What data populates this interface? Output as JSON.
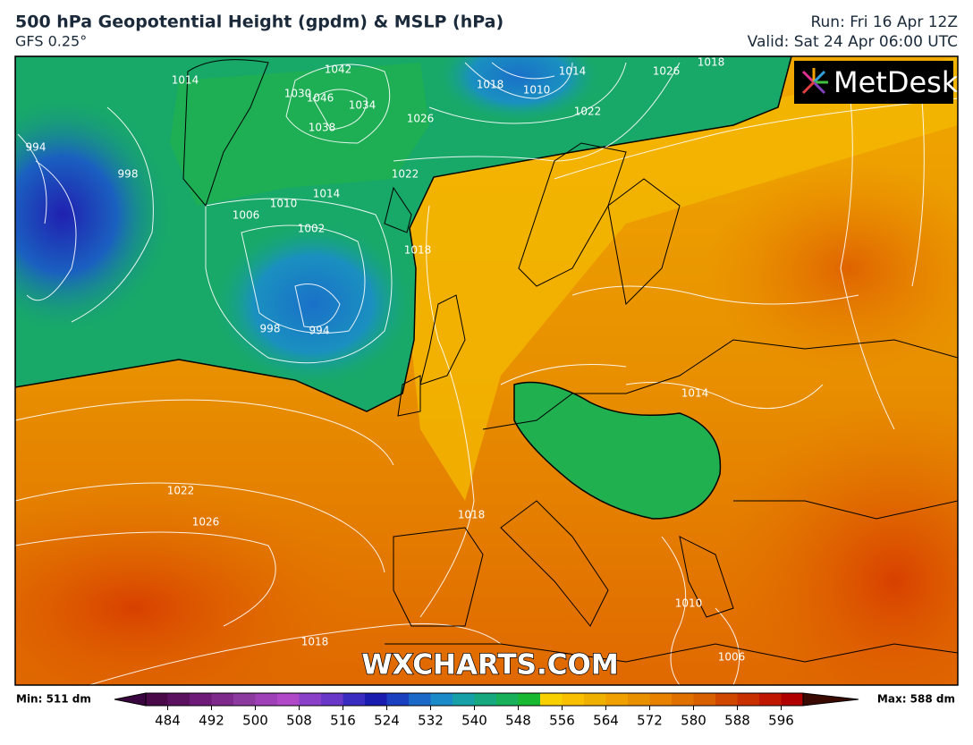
{
  "header": {
    "title": "500 hPa Geopotential Height (gpdm) & MSLP (hPa)",
    "model": "GFS 0.25°",
    "run": "Run: Fri 16 Apr 12Z",
    "valid": "Valid: Sat 24 Apr 06:00 UTC"
  },
  "map": {
    "logo": "MetDesk",
    "watermark": "WXCHARTS.COM",
    "isobar_labels": [
      "1014",
      "1042",
      "1030",
      "1046",
      "1038",
      "1034",
      "1026",
      "1010",
      "1018",
      "1014",
      "1022",
      "1026",
      "1018",
      "1022",
      "1014",
      "1010",
      "1006",
      "1002",
      "998",
      "994",
      "998",
      "994",
      "1018",
      "1014",
      "1022",
      "1026",
      "1018",
      "1010",
      "1006",
      "1018"
    ]
  },
  "colorbar": {
    "min_label": "Min: 511 dm",
    "max_label": "Max: 588 dm",
    "clim": [
      480,
      600
    ],
    "ticks": [
      484,
      492,
      500,
      508,
      516,
      524,
      532,
      540,
      548,
      556,
      564,
      572,
      580,
      588,
      596
    ],
    "colors": [
      "#4a0a4a",
      "#5c1060",
      "#6e1a78",
      "#7d2a8c",
      "#8c3aa0",
      "#a040b8",
      "#b048c8",
      "#8a40c8",
      "#6a38c8",
      "#3a2cc0",
      "#1a1cb0",
      "#1a40c0",
      "#1a68c8",
      "#1a8ac8",
      "#18a0a8",
      "#18a880",
      "#18b058",
      "#18b830",
      "#f8d000",
      "#f8c000",
      "#f0b000",
      "#f0a000",
      "#e89000",
      "#e88000",
      "#e07000",
      "#d86000",
      "#d04800",
      "#c83000",
      "#c01800",
      "#b00000"
    ]
  }
}
